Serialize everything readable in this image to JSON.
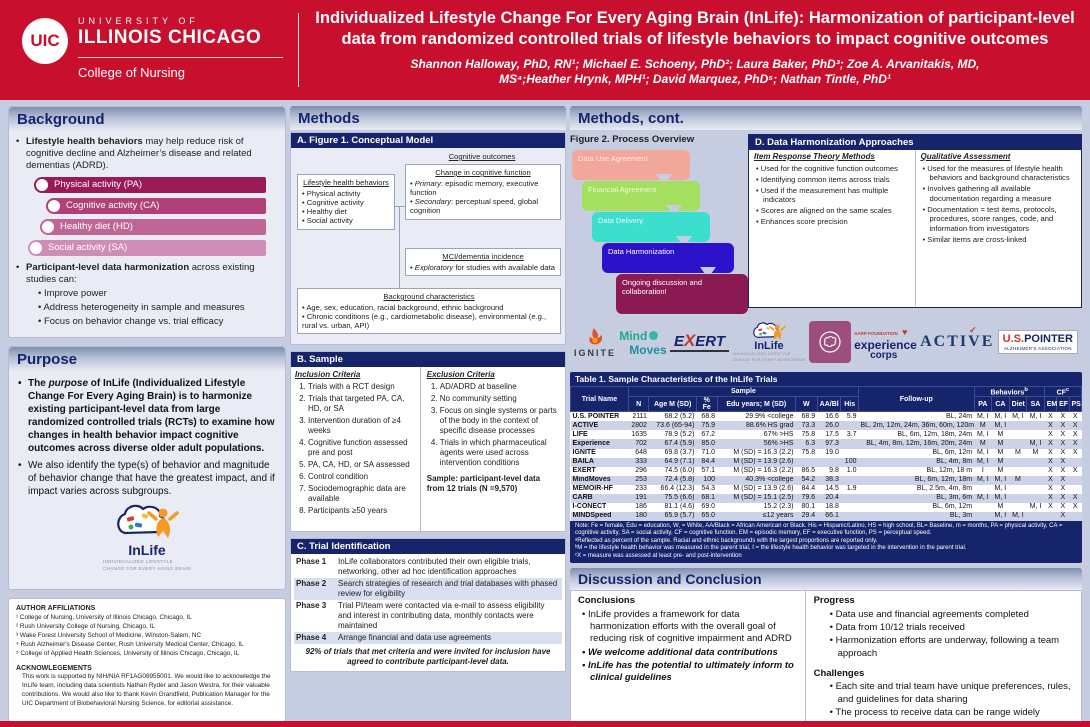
{
  "header": {
    "logo": {
      "mark": "UIC",
      "line1": "UNIVERSITY OF",
      "line2": "ILLINOIS CHICAGO",
      "college": "College of Nursing"
    },
    "title_line1": "Individualized Lifestyle Change For Every Aging Brain (InLife): Harmonization of participant-level",
    "title_line2": "data from randomized controlled trials of lifestyle behaviors to impact cognitive outcomes",
    "authors_line1": "Shannon Halloway, PhD, RN¹; Michael E. Schoeny, PhD²; Laura Baker, PhD³;  Zoe A. Arvanitakis, MD,",
    "authors_line2": "MS⁴;Heather Hrynk, MPH¹; David Marquez, PhD⁵; Nathan Tintle, PhD¹"
  },
  "background": {
    "title": "Background",
    "b1_bold": "Lifestyle health behaviors",
    "b1_rest": " may help reduce risk of cognitive decline and Alzheimer’s disease and related dementias (ADRD).",
    "activities": [
      {
        "label": "Physical activity (PA)",
        "color": "#9a1a58"
      },
      {
        "label": "Cognitive activity (CA)",
        "color": "#b04077"
      },
      {
        "label": "Healthy diet (HD)",
        "color": "#bf6697"
      },
      {
        "label": "Social activity (SA)",
        "color": "#ce8db4"
      }
    ],
    "b2_bold": "Participant-level data harmonization",
    "b2_rest": " across existing studies can:",
    "sub_bullets": [
      "Improve power",
      "Address heterogeneity in sample and measures",
      "Focus on behavior change vs. trial efficacy"
    ]
  },
  "purpose": {
    "title": "Purpose",
    "b1_pre": "The ",
    "b1_italic": "purpose",
    "b1_post": " of InLife (Individualized Lifestyle Change For Every Aging Brain) is to harmonize existing participant-level data from large randomized controlled trials (RCTs) to examine how changes in health behavior impact cognitive outcomes across diverse older adult populations.",
    "b2": "We also identify the type(s) of behavior and magnitude of behavior change that have the greatest impact, and if impact varies across subgroups."
  },
  "inlife_logo": {
    "wordmark": "InLife",
    "caption_line1": "INDIVIDUALIZED LIFESTYLE",
    "caption_line2": "CHANGE FOR EVERY AGING BRAIN"
  },
  "affiliations": {
    "title": "AUTHOR AFFILIATIONS",
    "lines": [
      "¹ College of Nursing, University of Illinois Chicago, Chicago, IL",
      "² Rush University College of Nursing, Chicago, IL",
      "³ Wake Forest University School of Medicine, Winston-Salem, NC",
      "⁴ Rush Alzheimer's Disease Center, Rush University Medical Center, Chicago, IL",
      "⁵ College of Applied Health Sciences, University of Illinois Chicago, Chicago, IL"
    ],
    "ack_title": "ACKNOWLEGEMENTS",
    "ack_text": "This work is supported by NIH/NIA RF1AG08955001. We would like to acknowledge the InLife team, including data scientists Nathan Ryder and Jason Westra, for their valuable contributions. We would also like to thank Kevin Grandfield, Publication Manager for the UIC Department of Biobehavioral Nursing Science, for editorial assistance."
  },
  "methods": {
    "title": "Methods",
    "fig1_bar": "A. Figure 1. Conceptual Model",
    "lifestyle": {
      "title": "Lifestyle health behaviors",
      "items": [
        "Physical activity",
        "Cognitive activity",
        "Healthy diet",
        "Social activity"
      ]
    },
    "cog_label": "Cognitive outcomes",
    "change": {
      "title": "Change in cognitive function",
      "items": [
        {
          "lead": "Primary",
          "rest": ": episodic memory, executive function"
        },
        {
          "lead": "Secondary",
          "rest": ": perceptual speed, global cognition"
        }
      ]
    },
    "mci": {
      "title": "MCI/dementia incidence",
      "items": [
        {
          "lead": "Exploratory",
          "rest": " for studies with available data"
        }
      ]
    },
    "bgchar": {
      "title": "Background characteristics",
      "items": [
        "Age, sex, education, racial background, ethnic background",
        "Chronic conditions (e.g., cardiometabolic disease), environmental (e.g., rural vs. urban, API)"
      ]
    }
  },
  "sample": {
    "bar": "B. Sample",
    "inclusion_title": "Inclusion Criteria",
    "inclusion": [
      "Trials with a RCT design",
      "Trials that targeted PA, CA, HD, or SA",
      "Intervention duration of ≥4 weeks",
      "Cognitive function assessed pre and post",
      "PA, CA, HD, or SA assessed",
      "Control condition",
      "Sociodemographic data are available",
      "Participants ≥50 years"
    ],
    "exclusion_title": "Exclusion Criteria",
    "exclusion": [
      "AD/ADRD at baseline",
      "No community setting",
      "Focus on single systems or parts of the body in the context of specific disease processes",
      "Trials in which pharmaceutical agents were used across intervention conditions"
    ],
    "note": "Sample: participant-level data from 12 trials (N =9,570)"
  },
  "trial_identification": {
    "bar": "C. Trial Identification",
    "phases": [
      {
        "label": "Phase 1",
        "text": "InLife collaborators contributed their own eligible trials, networking, other ad hoc identification approaches"
      },
      {
        "label": "Phase 2",
        "text": "Search strategies of research and trial databases with phased review for eligibility"
      },
      {
        "label": "Phase 3",
        "text": "Trial PI/team were contacted via e-mail to assess eligibility and interest in contributing data, monthly contacts were maintained"
      },
      {
        "label": "Phase 4",
        "text": "Arrange financial and data use agreements"
      }
    ],
    "summary": "92% of trials that met criteria and were invited for inclusion have agreed to contribute participant-level data."
  },
  "methods_cont": {
    "title": "Methods, cont.",
    "fig2_title": "Figure 2. Process Overview",
    "process_steps": [
      {
        "label": "Data Use Agreement",
        "color": "#f2a79b",
        "text_color": "#fbe9e4"
      },
      {
        "label": "Financial Agreement",
        "color": "#a4df60",
        "text_color": "#eefadd"
      },
      {
        "label": "Data Delivery",
        "color": "#3cdfce",
        "text_color": "#e6fbf8"
      },
      {
        "label": "Data Harmonization",
        "color": "#2d12cb",
        "text_color": "#ffffff"
      },
      {
        "label": "Ongoing discussion and collaboration!",
        "color": "#8c1a52",
        "text_color": "#ffffff"
      }
    ],
    "dbox_bar": "D. Data Harmonization Approaches",
    "irt_title": "Item Response Theory Methods",
    "irt_items": [
      "Used for the cognitive function outcomes",
      "Identifying common items across trials",
      "Used if the measurement has multiple indicators",
      "Scores are aligned on the same scales",
      "Enhances score precision"
    ],
    "qa_title": "Qualitative Assessment",
    "qa_items": [
      "Used for the measures of lifestyle health behaviors and background characteristics",
      "Involves gathering all available documentation regarding a measure",
      "Documentation =  test items, protocols, procedures, score ranges, code, and information from investigators",
      "Similar items are cross-linked"
    ]
  },
  "logos": {
    "ignite": "IGNITE",
    "mind1": "Mind",
    "mind2": "Moves",
    "exert_pre": "E",
    "exert_x": "X",
    "exert_post": "ERT",
    "experience_top": "AARP FOUNDATION",
    "experience1": "experience",
    "experience2": "corps",
    "active_pre": "ACTI",
    "active_v": "V",
    "active_post": "E",
    "active_check": "✓",
    "usp_us": "U.S.",
    "usp_pointer": "POINTER",
    "usp_sub": "ALZHEIMER'S ASSOCIATION"
  },
  "table": {
    "title": "Table 1. Sample Characteristics of the InLife Trials",
    "group_headers": {
      "trial": "Trial Name",
      "sample": "Sample",
      "followup": "Follow-up",
      "behaviors": "Behaviors",
      "behaviors_sup": "b",
      "cf": "CF",
      "cf_sup": "c"
    },
    "columns": [
      "N",
      "Age M (SD)",
      "% Fe",
      "Edu years; M (SD)",
      "W",
      "AA/Bl",
      "His",
      "PA",
      "CA",
      "Diet",
      "SA",
      "EM",
      "EF",
      "PS"
    ],
    "rows": [
      [
        "U.S. POINTER",
        "2111",
        "68.2 (5.2)",
        "68.8",
        "29.9% <college",
        "68.9",
        "16.6",
        "5.9",
        "BL, 24m",
        "M, I",
        "M, I",
        "M, I",
        "M, I",
        "X",
        "X",
        "X"
      ],
      [
        "ACTIVE",
        "2802",
        "73.6 (65-94)",
        "75.9",
        "88.6% HS grad",
        "73.3",
        "26.0",
        "",
        "BL, 2m, 12m, 24m, 36m, 60m, 120m",
        "M",
        "M, I",
        "",
        "",
        "X",
        "X",
        "X"
      ],
      [
        "LIFE",
        "1635",
        "78.9 (5.2)",
        "67.2",
        "67% >HS",
        "75.8",
        "17.5",
        "3.7",
        "BL, 6m, 12m, 18m, 24m",
        "M, I",
        "M",
        "",
        "",
        "X",
        "X",
        "X"
      ],
      [
        "Experience",
        "702",
        "67.4 (5.9)",
        "85.0",
        "56% >HS",
        "6.3",
        "97.3",
        "",
        "BL, 4m, 8m, 12m, 16m, 20m, 24m",
        "M",
        "M",
        "",
        "M, I",
        "X",
        "X",
        "X"
      ],
      [
        "IGNITE",
        "648",
        "69.8 (3.7)",
        "71.0",
        "M (SD) = 16.3 (2.2)",
        "75.8",
        "19.0",
        "",
        "BL, 6m, 12m",
        "M, I",
        "M",
        "M",
        "M",
        "X",
        "X",
        "X"
      ],
      [
        "BAILA",
        "333",
        "64.9 (7.1)",
        "84.4",
        "M (SD) = 13.9 (2.6)",
        "",
        "",
        "100",
        "BL, 4m, 8m",
        "M, I",
        "M",
        "",
        "",
        "X",
        "X",
        ""
      ],
      [
        "EXERT",
        "296",
        "74.5 (6.0)",
        "57.1",
        "M (SD) = 16.3 (2.2)",
        "86.5",
        "9.8",
        "1.0",
        "BL, 12m, 18 m",
        "I",
        "M",
        "",
        "",
        "X",
        "X",
        "X"
      ],
      [
        "MindMoves",
        "253",
        "72.4 (5.8)",
        "100",
        "40.3% <college",
        "54.2",
        "38.3",
        "",
        "BL, 6m, 12m, 18m",
        "M, I",
        "M, I",
        "M",
        "",
        "X",
        "X",
        ""
      ],
      [
        "MEMOIR-HF",
        "233",
        "66.4 (12.3)",
        "54.3",
        "M (SD) = 13.9 (2.6)",
        "84.4",
        "14.5",
        "1.9",
        "BL, 2.5m, 4m, 8m",
        "",
        "M, I",
        "",
        "",
        "X",
        "X",
        ""
      ],
      [
        "CARB",
        "191",
        "75.5 (6.6)",
        "68.1",
        "M (SD) = 15.1 (2.5)",
        "79.6",
        "20.4",
        "",
        "BL, 3m, 6m",
        "M, I",
        "M, I",
        "",
        "",
        "X",
        "X",
        "X"
      ],
      [
        "I-CONECT",
        "186",
        "81.1 (4.6)",
        "69.0",
        "15.2 (2.3)",
        "80.1",
        "18.8",
        "",
        "BL, 6m, 12m",
        "",
        "M",
        "",
        "M, I",
        "X",
        "X",
        "X"
      ],
      [
        "MINDSpeed",
        "180",
        "65.9 (5.7)",
        "65.0",
        "≤12 years",
        "29.4",
        "66.1",
        "",
        "BL, 3m",
        "",
        "M, I",
        "M, I",
        "",
        "",
        "X",
        ""
      ]
    ],
    "notes": [
      "Note: Fe = female, Edu = education, W, = White, AA/Black = African American or Black. His = Hispanic/Latino, HS = high school, BL= Baseline, m = months, PA = physical activity, CA = cognitive activity, SA = social activity, CF = cognitive function. EM = episodic memory, EF = executive function, PS = perceptual speed.",
      "ᵃReflected as percent of the sample. Racial and ethnic backgrounds with the largest proportions are reported only.",
      "ᵇM = the lifestyle health behavior was measured in the parent trial, I = the lifestyle health behavior was targeted in the intervention in the parent trial.",
      "ᶜX = measure was assessed at least pre- and post-intervention"
    ]
  },
  "discussion": {
    "title": "Discussion and Conclusion",
    "conclusions_title": "Conclusions",
    "conclusions": [
      {
        "text": "InLife provides a framework for data harmonization efforts with the overall goal of reducing risk of cognitive impairment and ADRD",
        "emph": false
      },
      {
        "text": "We welcome additional data contributions",
        "emph": true
      },
      {
        "text": "InLife has the potential to ultimately inform to clinical guidelines",
        "emph": true
      }
    ],
    "progress_title": "Progress",
    "progress": [
      "Data use and financial agreements completed",
      "Data from 10/12 trials received",
      "Harmonization efforts are underway, following a team approach"
    ],
    "challenges_title": "Challenges",
    "challenges": [
      "Each site and trial team have unique preferences, rules, and guidelines for data sharing",
      "The process to receive data can be range widely"
    ]
  }
}
